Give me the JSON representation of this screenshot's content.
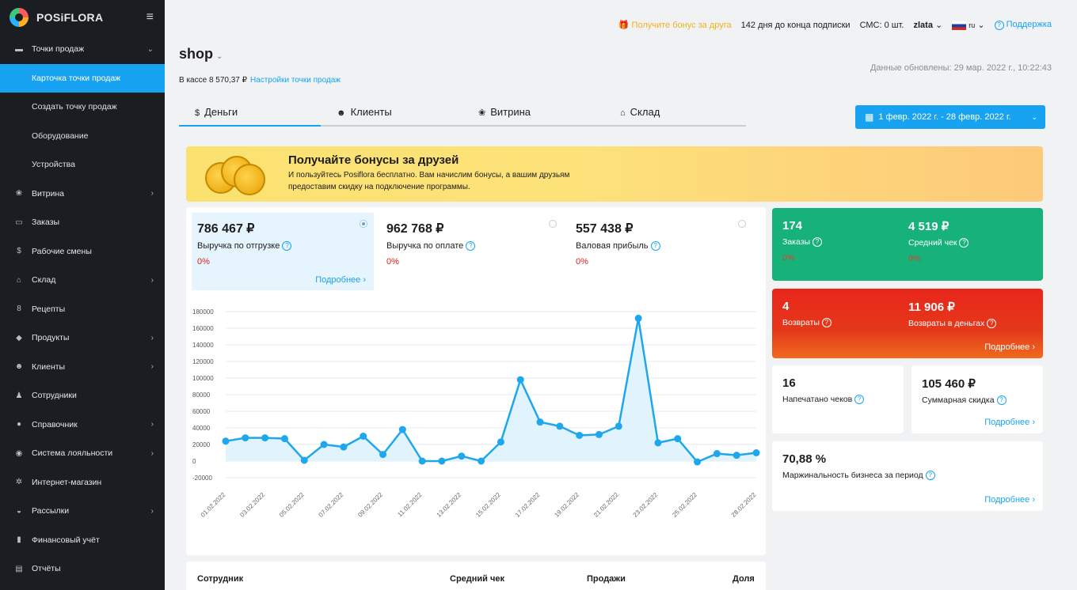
{
  "sidebar": {
    "brand": "POSiFLORA",
    "items": [
      {
        "label": "Точки продаж",
        "icon": "store-icon",
        "glyph": "▬",
        "chevron": "⌄"
      },
      {
        "label": "Витрина",
        "icon": "flower-icon",
        "glyph": "❀",
        "chevron": "›"
      },
      {
        "label": "Заказы",
        "icon": "orders-icon",
        "glyph": "▭",
        "chevron": ""
      },
      {
        "label": "Рабочие смены",
        "icon": "dollar-icon",
        "glyph": "$",
        "chevron": ""
      },
      {
        "label": "Склад",
        "icon": "warehouse-icon",
        "glyph": "⌂",
        "chevron": "›"
      },
      {
        "label": "Рецепты",
        "icon": "recipe-icon",
        "glyph": "8",
        "chevron": ""
      },
      {
        "label": "Продукты",
        "icon": "products-icon",
        "glyph": "◆",
        "chevron": "›"
      },
      {
        "label": "Клиенты",
        "icon": "clients-icon",
        "glyph": "☻",
        "chevron": "›"
      },
      {
        "label": "Сотрудники",
        "icon": "employee-icon",
        "glyph": "♟",
        "chevron": ""
      },
      {
        "label": "Справочник",
        "icon": "reference-icon",
        "glyph": "●",
        "chevron": "›"
      },
      {
        "label": "Система лояльности",
        "icon": "loyalty-icon",
        "glyph": "◉",
        "chevron": "›"
      },
      {
        "label": "Интернет-магазин",
        "icon": "webshop-icon",
        "glyph": "✲",
        "chevron": ""
      },
      {
        "label": "Рассылки",
        "icon": "mail-icon",
        "glyph": "◒",
        "chevron": "›"
      },
      {
        "label": "Финансовый учёт",
        "icon": "finance-icon",
        "glyph": "▮",
        "chevron": ""
      },
      {
        "label": "Отчёты",
        "icon": "reports-icon",
        "glyph": "▤",
        "chevron": ""
      }
    ],
    "subitems": [
      "Карточка точки продаж",
      "Создать точку продаж",
      "Оборудование",
      "Устройства"
    ]
  },
  "topbar": {
    "bonus": "Получите бонус за друга",
    "subscription": "142 дня до конца подписки",
    "sms": "СМС: 0 шт.",
    "user": "zlata",
    "lang": "ru",
    "support": "Поддержка"
  },
  "shop": {
    "title": "shop",
    "cash": "В кассе 8 570,37 ₽",
    "settings": "Настройки точки продаж",
    "updated": "Данные обновлены: 29 мар. 2022 г., 10:22:43"
  },
  "tabs": [
    "Деньги",
    "Клиенты",
    "Витрина",
    "Склад"
  ],
  "date_range": "1 февр. 2022 г. - 28 февр. 2022 г.",
  "banner": {
    "title": "Получайте бонусы за друзей",
    "text": "И пользуйтесь Posiflora бесплатно. Вам начислим бонусы, а вашим друзьям предоставим скидку на подключение программы."
  },
  "kpis": [
    {
      "value": "786 467 ₽",
      "label": "Выручка по отгрузке",
      "pct": "0%",
      "more": "Подробнее"
    },
    {
      "value": "962 768 ₽",
      "label": "Выручка по оплате",
      "pct": "0%"
    },
    {
      "value": "557 438 ₽",
      "label": "Валовая прибыль",
      "pct": "0%"
    }
  ],
  "stats": {
    "orders_value": "174",
    "orders_label": "Заказы",
    "orders_pct": "0%",
    "avg_value": "4 519 ₽",
    "avg_label": "Средний чек",
    "avg_pct": "0%",
    "returns_value": "4",
    "returns_label": "Возвраты",
    "returns_money_value": "11 906 ₽",
    "returns_money_label": "Возвраты в деньгах",
    "red_more": "Подробнее",
    "receipts_value": "16",
    "receipts_label": "Напечатано чеков",
    "discount_value": "105 460 ₽",
    "discount_label": "Суммарная скидка",
    "discount_more": "Подробнее",
    "margin_value": "70,88 %",
    "margin_label": "Маржинальность бизнеса за период",
    "margin_more": "Подробнее"
  },
  "table": {
    "col1": "Сотрудник",
    "col2": "Средний чек",
    "col3": "Продажи",
    "col4": "Доля"
  },
  "colors": {
    "accent": "#18a3f2",
    "sidebar": "#1a1d21",
    "green": "#16b27a",
    "red": "#e8261b"
  },
  "chart_data": {
    "type": "area",
    "x": [
      "01.02.2022",
      "02.02.2022",
      "03.02.2022",
      "04.02.2022",
      "05.02.2022",
      "06.02.2022",
      "07.02.2022",
      "08.02.2022",
      "09.02.2022",
      "10.02.2022",
      "11.02.2022",
      "12.02.2022",
      "13.02.2022",
      "14.02.2022",
      "15.02.2022",
      "16.02.2022",
      "17.02.2022",
      "18.02.2022",
      "19.02.2022",
      "20.02.2022",
      "21.02.2022",
      "22.02.2022",
      "23.02.2022",
      "24.02.2022",
      "25.02.2022",
      "26.02.2022",
      "27.02.2022",
      "28.02.2022"
    ],
    "xticks": [
      "01.02.2022",
      "03.02.2022",
      "05.02.2022",
      "07.02.2022",
      "09.02.2022",
      "11.02.2022",
      "13.02.2022",
      "15.02.2022",
      "17.02.2022",
      "19.02.2022",
      "21.02.2022",
      "23.02.2022",
      "25.02.2022",
      "28.02.2022"
    ],
    "values": [
      24000,
      28000,
      28000,
      27000,
      1000,
      20000,
      17000,
      30000,
      8000,
      38000,
      0,
      0,
      6000,
      0,
      23000,
      98000,
      47000,
      42000,
      31000,
      32000,
      42000,
      172000,
      22000,
      27000,
      -1000,
      9000,
      7000,
      10000
    ],
    "yticks": [
      180000,
      160000,
      140000,
      120000,
      100000,
      80000,
      60000,
      40000,
      20000,
      0,
      -20000
    ],
    "ylim": [
      -20000,
      180000
    ],
    "grid": true,
    "color": "#1ea7ec"
  }
}
